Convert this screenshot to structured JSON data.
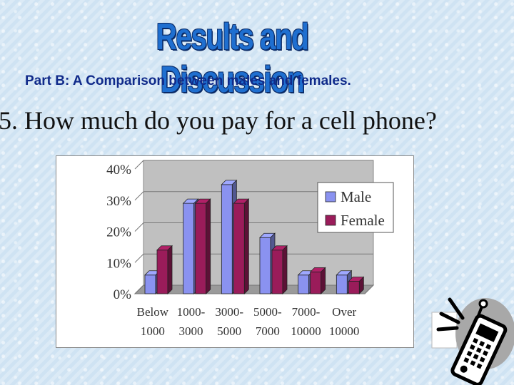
{
  "header": {
    "title": "Results and Discussion",
    "subtitle": "Part B:  A Comparison between males and females.",
    "question": "5. How much do you pay for a cell phone?"
  },
  "chart_data": {
    "type": "bar",
    "categories": [
      [
        "Below",
        "1000"
      ],
      [
        "1000-",
        "3000"
      ],
      [
        "3000-",
        "5000"
      ],
      [
        "5000-",
        "7000"
      ],
      [
        "7000-",
        "10000"
      ],
      [
        "Over",
        "10000"
      ]
    ],
    "series": [
      {
        "name": "Male",
        "values": [
          0.06,
          0.29,
          0.35,
          0.18,
          0.06,
          0.06
        ],
        "color": "#8a92f0"
      },
      {
        "name": "Female",
        "values": [
          0.14,
          0.29,
          0.29,
          0.14,
          0.07,
          0.04
        ],
        "color": "#9a1c5a"
      }
    ],
    "yticks": [
      "0%",
      "10%",
      "20%",
      "30%",
      "40%"
    ],
    "ylim": [
      0,
      0.4
    ],
    "legend_position": "top-right",
    "grid": true
  },
  "colors": {
    "title": "#1f6fd0",
    "subtitle": "#102a8a",
    "plot_wall": "#c0c0c0"
  },
  "decoration": {
    "icon": "cell-phone-icon"
  }
}
